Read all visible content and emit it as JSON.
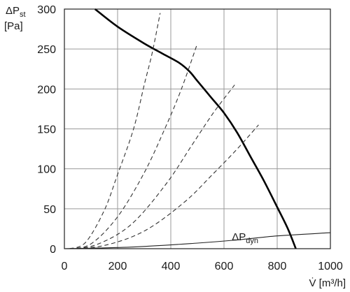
{
  "chart_data": {
    "type": "line",
    "title": "",
    "ylabel_main": "ΔP",
    "ylabel_sub": "st",
    "ylabel_unit": "[Pa]",
    "xlabel": "V̇ [m³/h]",
    "xlim": [
      0,
      1000
    ],
    "ylim": [
      0,
      300
    ],
    "xticks": [
      0,
      200,
      400,
      600,
      800,
      1000
    ],
    "yticks": [
      0,
      50,
      100,
      150,
      200,
      250,
      300
    ],
    "grid": true,
    "series": [
      {
        "name": "",
        "style": "solid-bold",
        "x": [
          115,
          200,
          300,
          370,
          430,
          470,
          500,
          550,
          600,
          650,
          700,
          750,
          800,
          840,
          870
        ],
        "y": [
          300,
          278,
          257,
          244,
          233,
          222,
          210,
          190,
          170,
          145,
          115,
          85,
          52,
          25,
          0
        ]
      },
      {
        "name": "",
        "style": "dashed",
        "x": [
          20,
          80,
          150,
          200,
          260,
          300,
          330,
          360
        ],
        "y": [
          0,
          8,
          48,
          93,
          150,
          205,
          245,
          295
        ]
      },
      {
        "name": "",
        "style": "dashed",
        "x": [
          20,
          100,
          200,
          300,
          380,
          440,
          500
        ],
        "y": [
          0,
          6,
          40,
          95,
          152,
          200,
          257
        ]
      },
      {
        "name": "",
        "style": "dashed",
        "x": [
          20,
          120,
          250,
          380,
          480,
          560,
          640
        ],
        "y": [
          0,
          5,
          30,
          80,
          130,
          170,
          205
        ]
      },
      {
        "name": "",
        "style": "dashed",
        "x": [
          20,
          150,
          300,
          450,
          560,
          650,
          730
        ],
        "y": [
          0,
          4,
          22,
          58,
          94,
          125,
          155
        ]
      },
      {
        "name": "ΔPdyn",
        "style": "thin",
        "x": [
          0,
          250,
          500,
          650,
          800,
          1000
        ],
        "y": [
          0,
          2,
          7,
          11,
          16,
          20
        ]
      }
    ],
    "annotations": [
      {
        "text_main": "ΔP",
        "text_sub": "dyn",
        "x": 640,
        "y": 6
      }
    ]
  }
}
